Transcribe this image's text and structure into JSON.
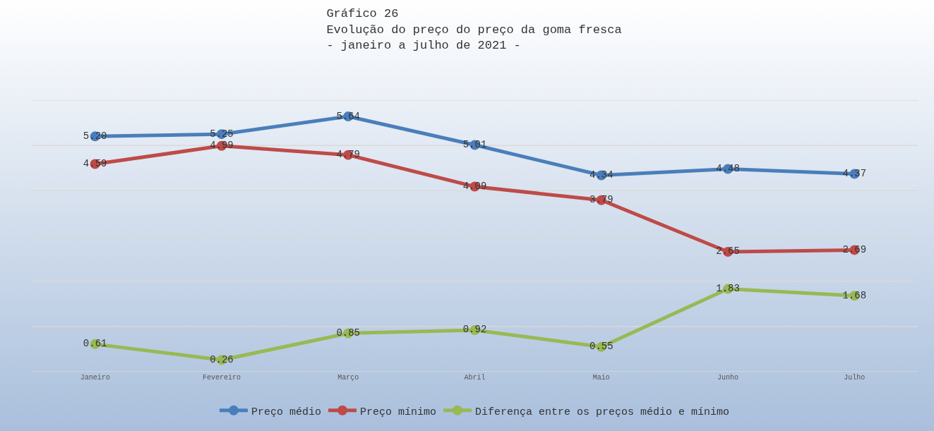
{
  "chart_data": {
    "type": "line",
    "title": "Gráfico 26\nEvolução do preço do preço da goma fresca\n- janeiro a julho de 2021 -",
    "categories": [
      "Janeiro",
      "Fevereiro",
      "Março",
      "Abril",
      "Maio",
      "Junho",
      "Julho"
    ],
    "series": [
      {
        "name": "Preço médio",
        "color": "#4a7ebb",
        "values": [
          5.2,
          5.25,
          5.64,
          5.01,
          4.34,
          4.48,
          4.37
        ],
        "value_labels": [
          "5.20",
          "5.25",
          "5.64",
          "5.01",
          "4.34",
          "4.48",
          "4.37"
        ]
      },
      {
        "name": "Preço mínimo",
        "color": "#be4b48",
        "values": [
          4.59,
          4.99,
          4.79,
          4.09,
          3.79,
          2.65,
          2.69
        ],
        "value_labels": [
          "4.59",
          "4.99",
          "4.79",
          "4.09",
          "3.79",
          "2.65",
          "2.69"
        ]
      },
      {
        "name": "Diferença entre os preços médio e mínimo",
        "color": "#98b954",
        "values": [
          0.61,
          0.26,
          0.85,
          0.92,
          0.55,
          1.83,
          1.68
        ],
        "value_labels": [
          "0.61",
          "0.26",
          "0.85",
          "0.92",
          "0.55",
          "1.83",
          "1.68"
        ]
      }
    ],
    "ylim": [
      0,
      6
    ],
    "yticks": [
      {
        "value": 0,
        "label": null
      },
      {
        "value": 1,
        "label": null
      },
      {
        "value": 2,
        "label": null
      },
      {
        "value": 3,
        "label": null
      },
      {
        "value": 4,
        "label": null
      },
      {
        "value": 5,
        "label": null
      },
      {
        "value": 6,
        "label": null
      }
    ],
    "tick_labels": "x",
    "grid": "y",
    "legend": "bottom",
    "marker": "circle",
    "line_style": "solid"
  }
}
